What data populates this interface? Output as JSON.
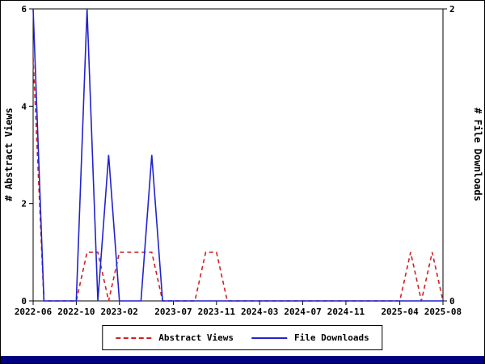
{
  "colors": {
    "background": "#ffffff",
    "axis": "#000000",
    "bottom_bar": "#000080"
  },
  "chart_data": {
    "type": "line",
    "title": "",
    "grid": false,
    "legend_position": "bottom-center",
    "x_months": [
      "2022-06",
      "2022-07",
      "2022-08",
      "2022-09",
      "2022-10",
      "2022-11",
      "2022-12",
      "2023-01",
      "2023-02",
      "2023-03",
      "2023-04",
      "2023-05",
      "2023-06",
      "2023-07",
      "2023-08",
      "2023-09",
      "2023-10",
      "2023-11",
      "2023-12",
      "2024-01",
      "2024-02",
      "2024-03",
      "2024-04",
      "2024-05",
      "2024-06",
      "2024-07",
      "2024-08",
      "2024-09",
      "2024-10",
      "2024-11",
      "2024-12",
      "2025-01",
      "2025-02",
      "2025-03",
      "2025-04",
      "2025-05",
      "2025-06",
      "2025-07",
      "2025-08"
    ],
    "x_ticks": [
      {
        "label": "2022-06",
        "month_index": 0
      },
      {
        "label": "2022-10",
        "month_index": 4
      },
      {
        "label": "2023-02",
        "month_index": 8
      },
      {
        "label": "2023-07",
        "month_index": 13
      },
      {
        "label": "2023-11",
        "month_index": 17
      },
      {
        "label": "2024-03",
        "month_index": 21
      },
      {
        "label": "2024-07",
        "month_index": 25
      },
      {
        "label": "2024-11",
        "month_index": 29
      },
      {
        "label": "2025-04",
        "month_index": 34
      },
      {
        "label": "2025-08",
        "month_index": 38
      }
    ],
    "left_axis": {
      "label": "# Abstract Views",
      "min": 0,
      "max": 6,
      "ticks": [
        0,
        2,
        4,
        6
      ]
    },
    "right_axis": {
      "label": "# File Downloads",
      "min": 0,
      "max": 2,
      "ticks": [
        0,
        2
      ]
    },
    "series": [
      {
        "name": "Abstract Views",
        "axis": "left",
        "color": "#cc2222",
        "style": "dashed",
        "values": [
          5,
          0,
          0,
          0,
          0,
          1,
          1,
          0,
          1,
          1,
          1,
          1,
          0,
          0,
          0,
          0,
          1,
          1,
          0,
          0,
          0,
          0,
          0,
          0,
          0,
          0,
          0,
          0,
          0,
          0,
          0,
          0,
          0,
          0,
          0,
          1,
          0,
          1,
          0
        ]
      },
      {
        "name": "File Downloads",
        "axis": "right",
        "color": "#2222cc",
        "style": "solid",
        "values": [
          2,
          0,
          0,
          0,
          0,
          2,
          0,
          1,
          0,
          0,
          0,
          1,
          0,
          0,
          0,
          0,
          0,
          0,
          0,
          0,
          0,
          0,
          0,
          0,
          0,
          0,
          0,
          0,
          0,
          0,
          0,
          0,
          0,
          0,
          0,
          0,
          0,
          0,
          0
        ]
      }
    ]
  }
}
